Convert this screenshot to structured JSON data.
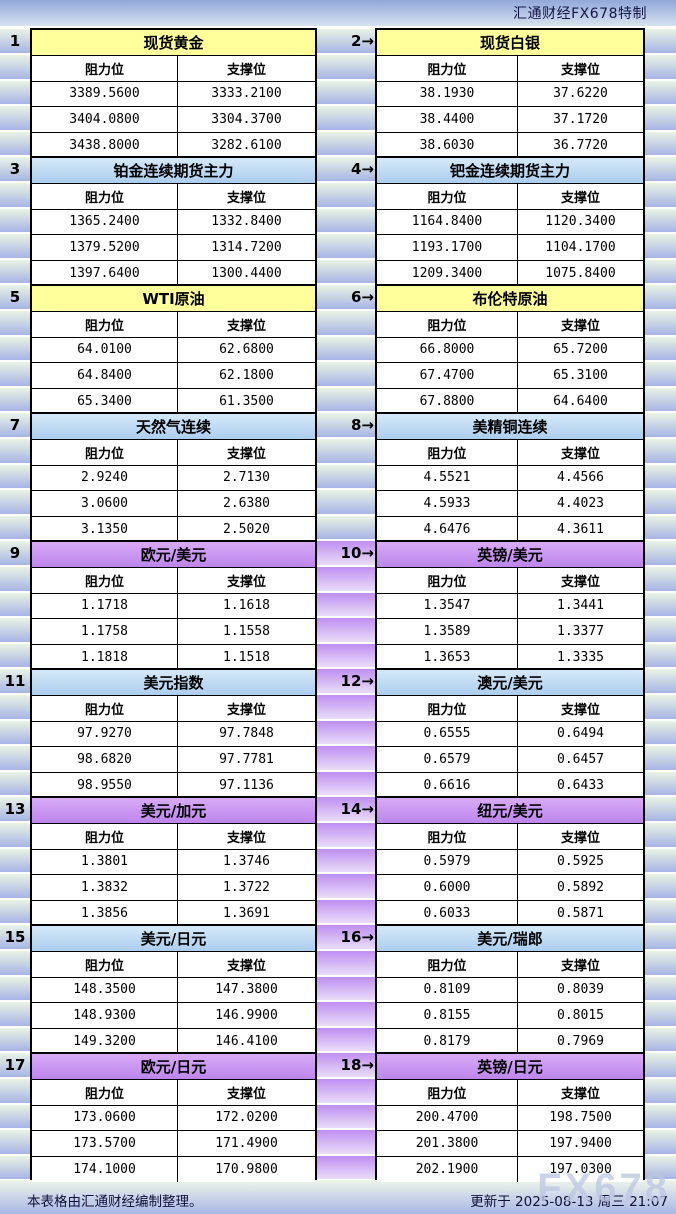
{
  "header": {
    "brand": "汇通财经FX678特制"
  },
  "table": {
    "col_resistance": "阻力位",
    "col_support": "支撑位"
  },
  "panels": [
    {
      "num": "1",
      "title": "现货黄金",
      "theme": "yellow",
      "rows": [
        [
          "3389.5600",
          "3333.2100"
        ],
        [
          "3404.0800",
          "3304.3700"
        ],
        [
          "3438.8000",
          "3282.6100"
        ]
      ]
    },
    {
      "num": "2→",
      "title": "现货白银",
      "theme": "yellow",
      "rows": [
        [
          "38.1930",
          "37.6220"
        ],
        [
          "38.4400",
          "37.1720"
        ],
        [
          "38.6030",
          "36.7720"
        ]
      ]
    },
    {
      "num": "3",
      "title": "铂金连续期货主力",
      "theme": "blue",
      "rows": [
        [
          "1365.2400",
          "1332.8400"
        ],
        [
          "1379.5200",
          "1314.7200"
        ],
        [
          "1397.6400",
          "1300.4400"
        ]
      ]
    },
    {
      "num": "4→",
      "title": "钯金连续期货主力",
      "theme": "blue",
      "rows": [
        [
          "1164.8400",
          "1120.3400"
        ],
        [
          "1193.1700",
          "1104.1700"
        ],
        [
          "1209.3400",
          "1075.8400"
        ]
      ]
    },
    {
      "num": "5",
      "title": "WTI原油",
      "theme": "yellow",
      "rows": [
        [
          "64.0100",
          "62.6800"
        ],
        [
          "64.8400",
          "62.1800"
        ],
        [
          "65.3400",
          "61.3500"
        ]
      ]
    },
    {
      "num": "6→",
      "title": "布伦特原油",
      "theme": "yellow",
      "rows": [
        [
          "66.8000",
          "65.7200"
        ],
        [
          "67.4700",
          "65.3100"
        ],
        [
          "67.8800",
          "64.6400"
        ]
      ]
    },
    {
      "num": "7",
      "title": "天然气连续",
      "theme": "blue",
      "rows": [
        [
          "2.9240",
          "2.7130"
        ],
        [
          "3.0600",
          "2.6380"
        ],
        [
          "3.1350",
          "2.5020"
        ]
      ]
    },
    {
      "num": "8→",
      "title": "美精铜连续",
      "theme": "blue",
      "rows": [
        [
          "4.5521",
          "4.4566"
        ],
        [
          "4.5933",
          "4.4023"
        ],
        [
          "4.6476",
          "4.3611"
        ]
      ]
    },
    {
      "num": "9",
      "title": "欧元/美元",
      "theme": "purple",
      "rows": [
        [
          "1.1718",
          "1.1618"
        ],
        [
          "1.1758",
          "1.1558"
        ],
        [
          "1.1818",
          "1.1518"
        ]
      ]
    },
    {
      "num": "10→",
      "title": "英镑/美元",
      "theme": "purple",
      "rows": [
        [
          "1.3547",
          "1.3441"
        ],
        [
          "1.3589",
          "1.3377"
        ],
        [
          "1.3653",
          "1.3335"
        ]
      ]
    },
    {
      "num": "11",
      "title": "美元指数",
      "theme": "blue",
      "rows": [
        [
          "97.9270",
          "97.7848"
        ],
        [
          "98.6820",
          "97.7781"
        ],
        [
          "98.9550",
          "97.1136"
        ]
      ]
    },
    {
      "num": "12→",
      "title": "澳元/美元",
      "theme": "blue",
      "rows": [
        [
          "0.6555",
          "0.6494"
        ],
        [
          "0.6579",
          "0.6457"
        ],
        [
          "0.6616",
          "0.6433"
        ]
      ]
    },
    {
      "num": "13",
      "title": "美元/加元",
      "theme": "purple",
      "rows": [
        [
          "1.3801",
          "1.3746"
        ],
        [
          "1.3832",
          "1.3722"
        ],
        [
          "1.3856",
          "1.3691"
        ]
      ]
    },
    {
      "num": "14→",
      "title": "纽元/美元",
      "theme": "purple",
      "rows": [
        [
          "0.5979",
          "0.5925"
        ],
        [
          "0.6000",
          "0.5892"
        ],
        [
          "0.6033",
          "0.5871"
        ]
      ]
    },
    {
      "num": "15",
      "title": "美元/日元",
      "theme": "blue",
      "rows": [
        [
          "148.3500",
          "147.3800"
        ],
        [
          "148.9300",
          "146.9900"
        ],
        [
          "149.3200",
          "146.4100"
        ]
      ]
    },
    {
      "num": "16→",
      "title": "美元/瑞郎",
      "theme": "blue",
      "rows": [
        [
          "0.8109",
          "0.8039"
        ],
        [
          "0.8155",
          "0.8015"
        ],
        [
          "0.8179",
          "0.7969"
        ]
      ]
    },
    {
      "num": "17",
      "title": "欧元/日元",
      "theme": "purple",
      "rows": [
        [
          "173.0600",
          "172.0200"
        ],
        [
          "173.5700",
          "171.4900"
        ],
        [
          "174.1000",
          "170.9800"
        ]
      ]
    },
    {
      "num": "18→",
      "title": "英镑/日元",
      "theme": "purple",
      "rows": [
        [
          "200.4700",
          "198.7500"
        ],
        [
          "201.3800",
          "197.9400"
        ],
        [
          "202.1900",
          "197.0300"
        ]
      ]
    }
  ],
  "footer": {
    "source_note": "本表格由汇通财经编制整理。",
    "updated": "更新于 2025-08-13 周三 21:07",
    "watermark": "FX678"
  },
  "colors": {
    "title_yellow": "#ffff9c",
    "title_blue": "#accdee",
    "title_purple": "#bd85ec",
    "band_light": "#e9f3e5",
    "band_dark": "#a7b4e4",
    "band_purple_dark": "#bf8eef",
    "band_purple_light": "#e9ddf9",
    "border": "#000000"
  }
}
